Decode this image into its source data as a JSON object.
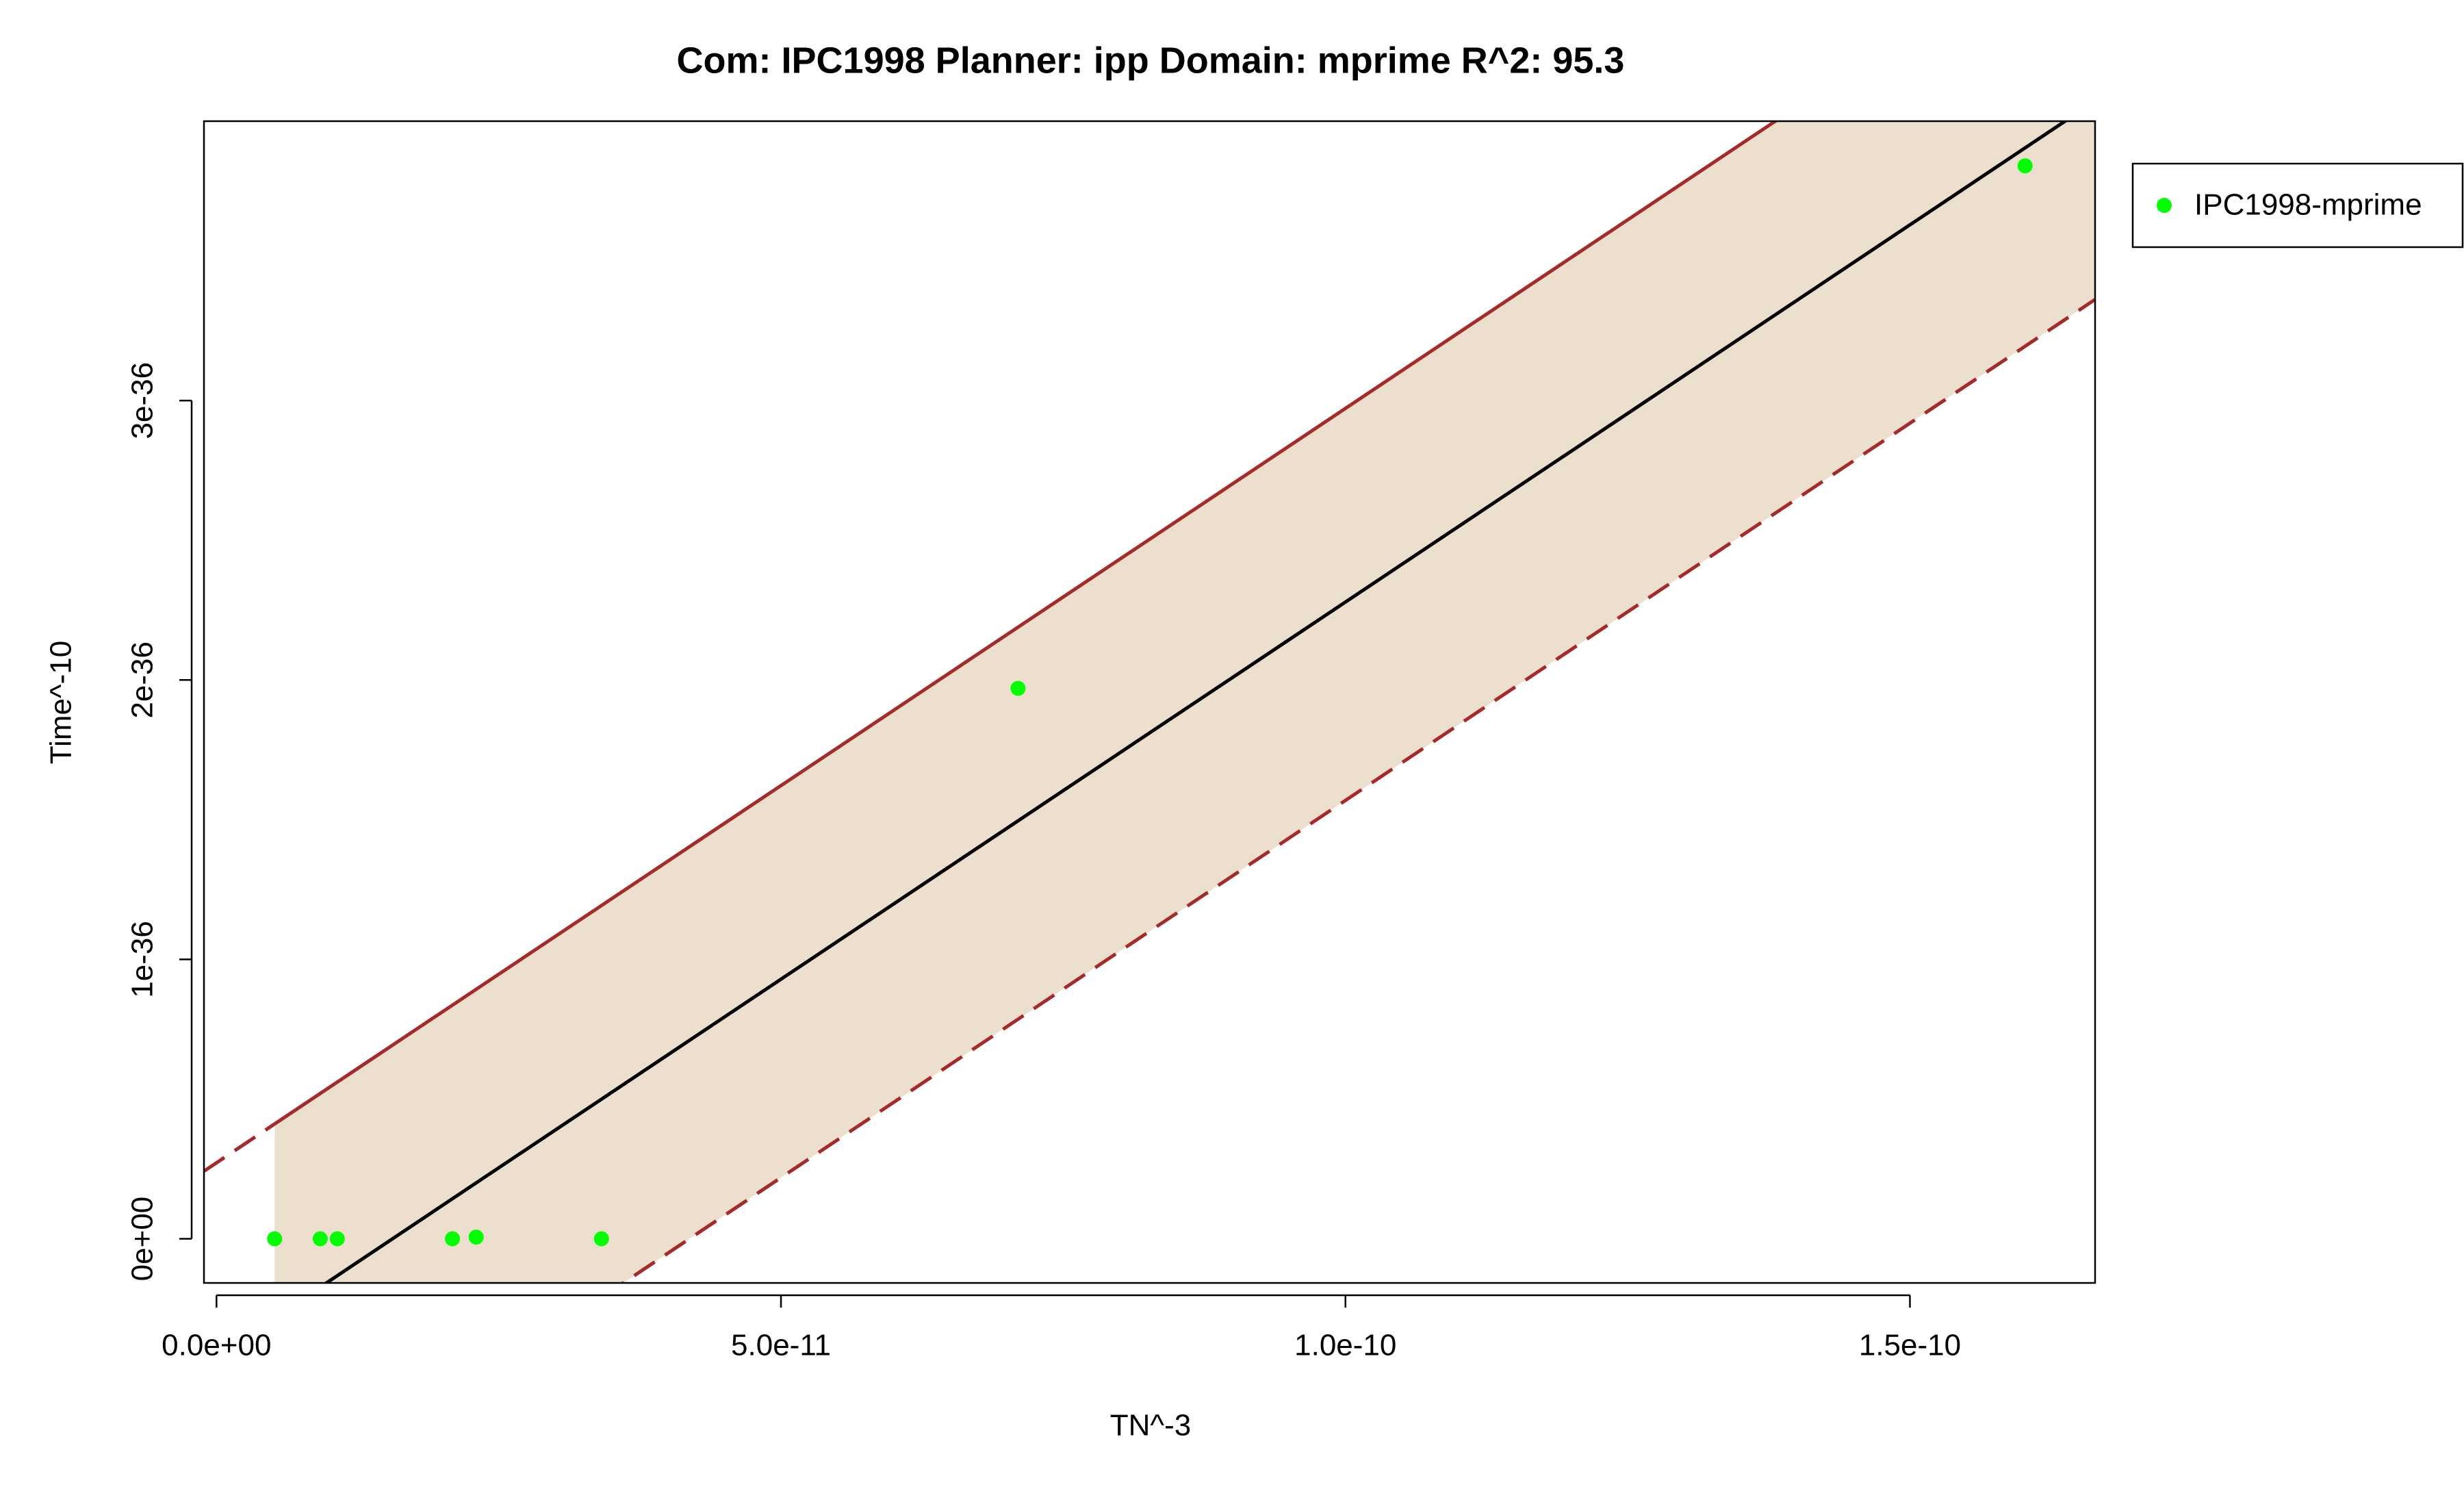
{
  "chart_data": {
    "type": "scatter",
    "title": "Com: IPC1998 Planner: ipp Domain: mprime R^2: 95.3",
    "x_label": "TN^-3",
    "y_label": "Time^-10",
    "series": [
      {
        "name": "IPC1998-mprime",
        "color": "#00ff00",
        "x": [
          5.15e-12,
          9.19e-12,
          1.07e-11,
          2.09e-11,
          2.3e-11,
          3.41e-11,
          7.1e-11,
          1.602e-10
        ],
        "values": [
          0,
          0,
          0,
          0,
          6e-39,
          0,
          1.97e-36,
          3.84e-36
        ]
      }
    ],
    "fit": {
      "slope": 2.7e-26,
      "intercept": -4.21e-37,
      "color": "#000000"
    },
    "band": {
      "color": "#ecdfcd",
      "upper": {
        "slope": 2.7e-26,
        "intercept": 2.72e-37,
        "color": "#a52a2a",
        "dashed": false
      },
      "lower": {
        "slope": 2.7e-26,
        "intercept": -1.131e-36,
        "color": "#a52a2a",
        "dashed": true
      }
    },
    "xlim": [
      -1.11e-12,
      1.664e-10
    ],
    "ylim": [
      -1.58e-37,
      4e-36
    ],
    "xticks": [
      {
        "value": 0,
        "label": "0.0e+00"
      },
      {
        "value": 5e-11,
        "label": "5.0e-11"
      },
      {
        "value": 1e-10,
        "label": "1.0e-10"
      },
      {
        "value": 1.5e-10,
        "label": "1.5e-10"
      }
    ],
    "yticks": [
      {
        "value": 0,
        "label": "0e+00"
      },
      {
        "value": 1e-36,
        "label": "1e-36"
      },
      {
        "value": 2e-36,
        "label": "2e-36"
      },
      {
        "value": 3e-36,
        "label": "3e-36"
      }
    ],
    "legend": "top-right-outside"
  }
}
